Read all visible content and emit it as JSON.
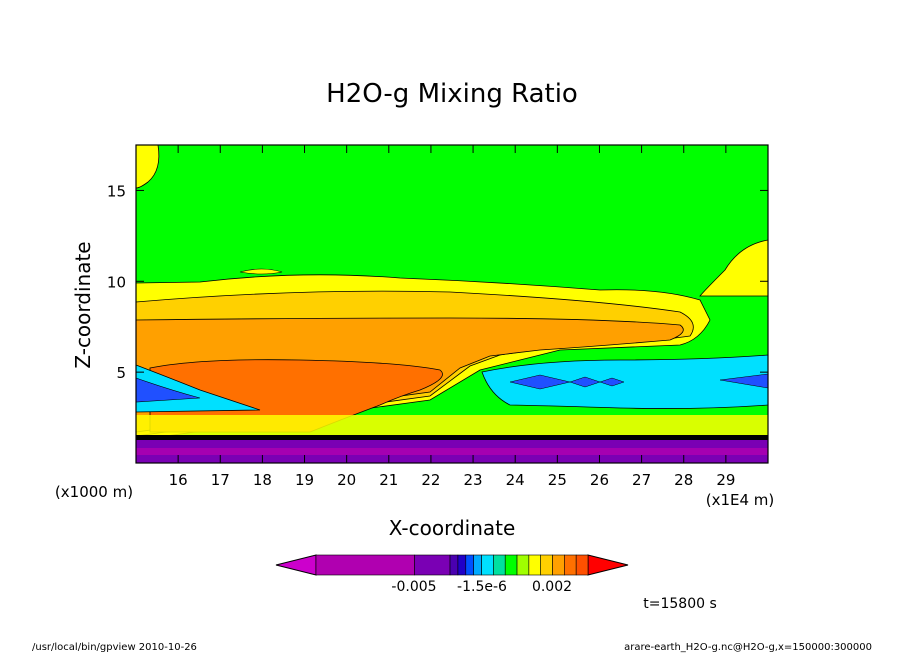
{
  "chart_data": {
    "type": "heatmap",
    "title": "H2O-g Mixing Ratio",
    "xlabel": "X-coordinate",
    "ylabel": "Z-coordinate",
    "x_unit": "(x1E4 m)",
    "y_unit": "(x1000 m)",
    "xlim": [
      15.0,
      30.0
    ],
    "ylim": [
      0,
      17.5
    ],
    "x_ticks": [
      "16",
      "17",
      "18",
      "19",
      "20",
      "21",
      "22",
      "23",
      "24",
      "25",
      "26",
      "27",
      "28",
      "29"
    ],
    "y_ticks": [
      "5",
      "10",
      "15"
    ],
    "colorbar_labels": [
      "-0.005",
      "-1.5e-6",
      "0.002"
    ],
    "colorbar_colors": [
      "#cc00cc",
      "#b000b0",
      "#7a00b4",
      "#4a00b0",
      "#2000c8",
      "#0050ff",
      "#00aaff",
      "#00e0ff",
      "#00e0a0",
      "#00ff00",
      "#a0ff00",
      "#ffff00",
      "#ffd000",
      "#ffa000",
      "#ff7000",
      "#ff5000",
      "#ff0000"
    ],
    "time_label": "t=15800 s",
    "regions": [
      {
        "level": "green",
        "z_range": [
          10.5,
          17.5
        ],
        "x_range": [
          15.0,
          30.0
        ]
      },
      {
        "level": "yellow",
        "z_range": [
          8.8,
          10.4
        ],
        "x_range": [
          15.0,
          27.5
        ]
      },
      {
        "level": "light-orange",
        "z_range": [
          7.5,
          9.0
        ],
        "x_range": [
          15.0,
          28.5
        ]
      },
      {
        "level": "orange",
        "z_range": [
          5.5,
          7.8
        ],
        "x_range": [
          15.0,
          28.3
        ]
      },
      {
        "level": "dark-orange",
        "z_range": [
          2.5,
          5.5
        ],
        "x_range": [
          15.5,
          22.0
        ]
      },
      {
        "level": "cyan",
        "z_range": [
          4.2,
          6.0
        ],
        "x_range": [
          23.3,
          30.0
        ]
      },
      {
        "level": "purple",
        "z_range": [
          0,
          1.5
        ],
        "x_range": [
          15.0,
          30.0
        ]
      }
    ]
  },
  "footer": {
    "left": "/usr/local/bin/gpview  2010-10-26",
    "right": "arare-earth_H2O-g.nc@H2O-g,x=150000:300000"
  }
}
